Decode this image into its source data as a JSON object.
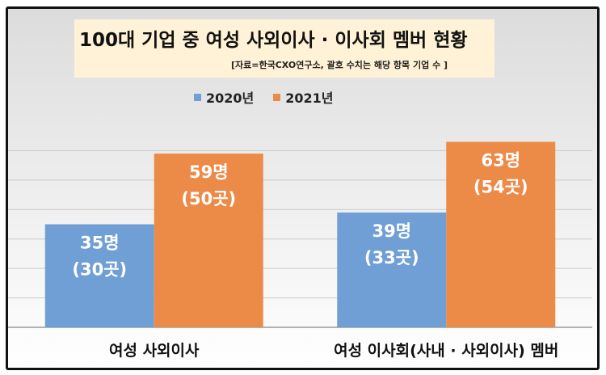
{
  "chart_data": {
    "type": "bar",
    "title": "100대 기업 중 여성 사외이사 · 이사회 멤버 현황",
    "subtitle": "[자료=한국CXO연구소, 괄호 수치는 해당 항목 기업 수 ]",
    "categories": [
      "여성 사외이사",
      "여성 이사회(사내 · 사외이사) 멤버"
    ],
    "series": [
      {
        "name": "2020년",
        "color": "#6f9fd4",
        "values": [
          35,
          39
        ],
        "labels": [
          "35명",
          "39명"
        ],
        "sublabels": [
          "(30곳)",
          "(33곳)"
        ]
      },
      {
        "name": "2021년",
        "color": "#ec8a48",
        "values": [
          59,
          63
        ],
        "labels": [
          "59명",
          "63명"
        ],
        "sublabels": [
          "(50곳)",
          "(54곳)"
        ]
      }
    ],
    "ylim": [
      0,
      70
    ],
    "grid": true,
    "legend": "top-center"
  }
}
